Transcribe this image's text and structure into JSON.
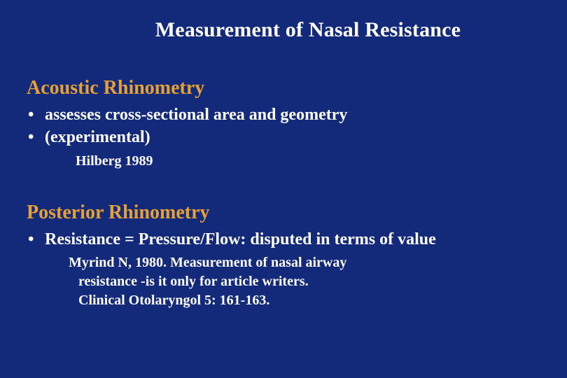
{
  "slide": {
    "background_color": "#132a7a",
    "title_color": "#ffffff",
    "heading_color": "#e6a035",
    "body_color": "#ffffff",
    "title": "Measurement of Nasal Resistance",
    "section1": {
      "heading": "Acoustic Rhinometry",
      "bullets": [
        "assesses cross-sectional area and geometry",
        "(experimental)"
      ],
      "citation": "Hilberg 1989"
    },
    "section2": {
      "heading": "Posterior Rhinometry",
      "bullets": [
        "Resistance = Pressure/Flow: disputed in terms of value"
      ],
      "citation_lines": [
        "Myrind N, 1980.  Measurement of nasal airway",
        "resistance -is it only for article writers.",
        "Clinical Otolaryngol 5: 161-163."
      ]
    }
  }
}
